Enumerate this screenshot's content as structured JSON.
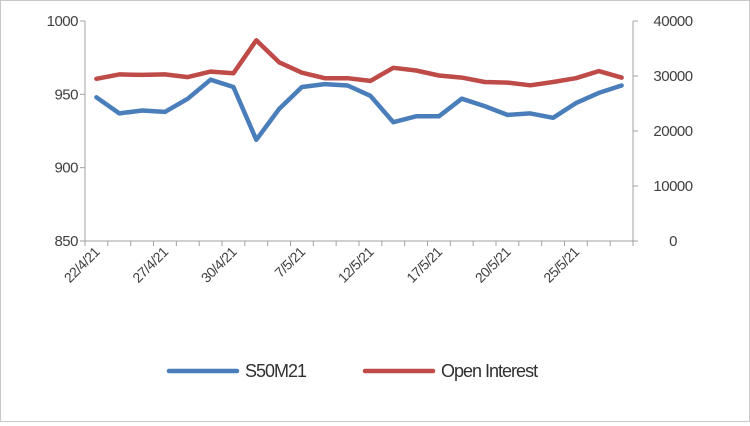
{
  "chart_data": {
    "type": "line",
    "x_tick_labels": [
      "22/4/21",
      "27/4/21",
      "30/4/21",
      "7/5/21",
      "12/5/21",
      "17/5/21",
      "20/5/21",
      "25/5/21"
    ],
    "x_tick_label_indices": [
      0,
      3,
      6,
      9,
      12,
      15,
      18,
      21
    ],
    "left_axis": {
      "ylim": [
        850,
        1000
      ],
      "ticks": [
        850,
        900,
        950,
        1000
      ]
    },
    "right_axis": {
      "ylim": [
        0,
        40000
      ],
      "ticks": [
        0,
        10000,
        20000,
        30000,
        40000
      ]
    },
    "series": [
      {
        "name": "S50M21",
        "axis": "left",
        "color": "#4a7ebb",
        "values": [
          948,
          937,
          939,
          938,
          947,
          960,
          955,
          919,
          940,
          955,
          957,
          956,
          949,
          931,
          935,
          935,
          947,
          942,
          936,
          937,
          934,
          944,
          951,
          956
        ]
      },
      {
        "name": "Open Interest",
        "axis": "right",
        "color": "#be4b48",
        "values": [
          29500,
          30300,
          30200,
          30300,
          29800,
          30800,
          30500,
          36500,
          32500,
          30600,
          29600,
          29600,
          29100,
          31500,
          31000,
          30100,
          29700,
          28900,
          28800,
          28300,
          28900,
          29600,
          30900,
          29700
        ]
      }
    ],
    "legend_position": "bottom",
    "grid": false
  }
}
